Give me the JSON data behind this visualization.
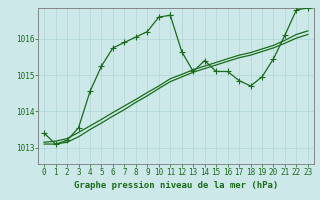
{
  "title": "Graphe pression niveau de la mer (hPa)",
  "bg_color": "#cce8e8",
  "plot_bg": "#cce8e8",
  "grid_color": "#aacccc",
  "line_color": "#1a6b1a",
  "border_color": "#888888",
  "xlim": [
    -0.5,
    23.5
  ],
  "ylim": [
    1012.55,
    1016.85
  ],
  "yticks": [
    1013,
    1014,
    1015,
    1016
  ],
  "xticks": [
    0,
    1,
    2,
    3,
    4,
    5,
    6,
    7,
    8,
    9,
    10,
    11,
    12,
    13,
    14,
    15,
    16,
    17,
    18,
    19,
    20,
    21,
    22,
    23
  ],
  "series1_x": [
    0,
    1,
    2,
    3,
    4,
    5,
    6,
    7,
    8,
    9,
    10,
    11
  ],
  "series1_y": [
    1013.4,
    1013.1,
    1013.2,
    1013.55,
    1014.55,
    1015.25,
    1015.75,
    1015.9,
    1016.05,
    1016.2,
    1016.6,
    1016.65
  ],
  "series2_x": [
    11,
    12,
    13,
    14,
    15,
    16,
    17,
    18,
    19,
    20,
    21,
    22,
    23
  ],
  "series2_y": [
    1016.65,
    1015.65,
    1015.1,
    1015.4,
    1015.1,
    1015.1,
    1014.85,
    1014.7,
    1014.95,
    1015.45,
    1016.1,
    1016.8,
    1016.85
  ],
  "linear1_x": [
    0,
    1,
    2,
    3,
    4,
    5,
    6,
    7,
    8,
    9,
    10,
    11,
    12,
    13,
    14,
    15,
    16,
    17,
    18,
    19,
    20,
    21,
    22,
    23
  ],
  "linear1_y": [
    1013.1,
    1013.1,
    1013.15,
    1013.3,
    1013.5,
    1013.68,
    1013.87,
    1014.05,
    1014.25,
    1014.43,
    1014.63,
    1014.82,
    1014.95,
    1015.08,
    1015.18,
    1015.28,
    1015.38,
    1015.48,
    1015.55,
    1015.65,
    1015.75,
    1015.88,
    1016.02,
    1016.12
  ],
  "linear2_x": [
    0,
    1,
    2,
    3,
    4,
    5,
    6,
    7,
    8,
    9,
    10,
    11,
    12,
    13,
    14,
    15,
    16,
    17,
    18,
    19,
    20,
    21,
    22,
    23
  ],
  "linear2_y": [
    1013.15,
    1013.18,
    1013.25,
    1013.42,
    1013.6,
    1013.78,
    1013.97,
    1014.15,
    1014.33,
    1014.52,
    1014.7,
    1014.9,
    1015.02,
    1015.15,
    1015.25,
    1015.35,
    1015.45,
    1015.55,
    1015.62,
    1015.72,
    1015.82,
    1015.96,
    1016.12,
    1016.22
  ],
  "tick_fontsize": 5.5,
  "label_fontsize": 6.5,
  "lw": 0.9,
  "ms": 2.2
}
